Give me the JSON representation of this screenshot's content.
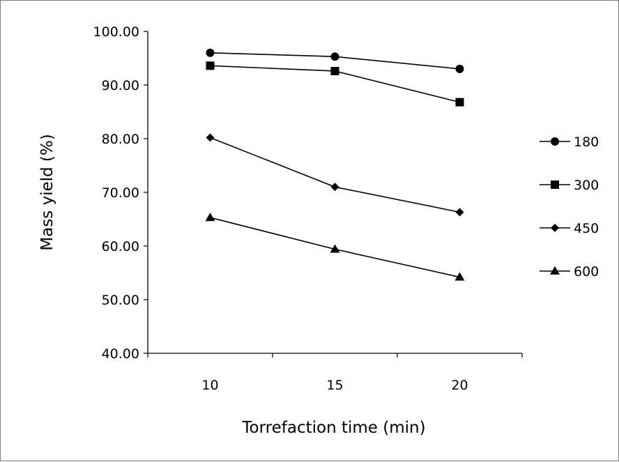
{
  "chart_data": {
    "type": "line",
    "title": "",
    "xlabel": "Torrefaction time (min)",
    "ylabel": "Mass yield (%)",
    "x": [
      10,
      15,
      20
    ],
    "x_tick_labels": [
      "10",
      "15",
      "20"
    ],
    "ylim": [
      40,
      100
    ],
    "y_ticks": [
      40,
      50,
      60,
      70,
      80,
      90,
      100
    ],
    "y_tick_labels": [
      "40.00",
      "50.00",
      "60.00",
      "70.00",
      "80.00",
      "90.00",
      "100.00"
    ],
    "grid": false,
    "legend_position": "right",
    "line_color": "#000000",
    "series": [
      {
        "name": "180",
        "marker": "circle",
        "values": [
          96.0,
          95.3,
          93.0
        ]
      },
      {
        "name": "300",
        "marker": "square",
        "values": [
          93.6,
          92.6,
          86.8
        ]
      },
      {
        "name": "450",
        "marker": "diamond",
        "values": [
          80.2,
          71.0,
          66.3
        ]
      },
      {
        "name": "600",
        "marker": "triangle",
        "values": [
          65.3,
          59.4,
          54.2
        ]
      }
    ]
  }
}
